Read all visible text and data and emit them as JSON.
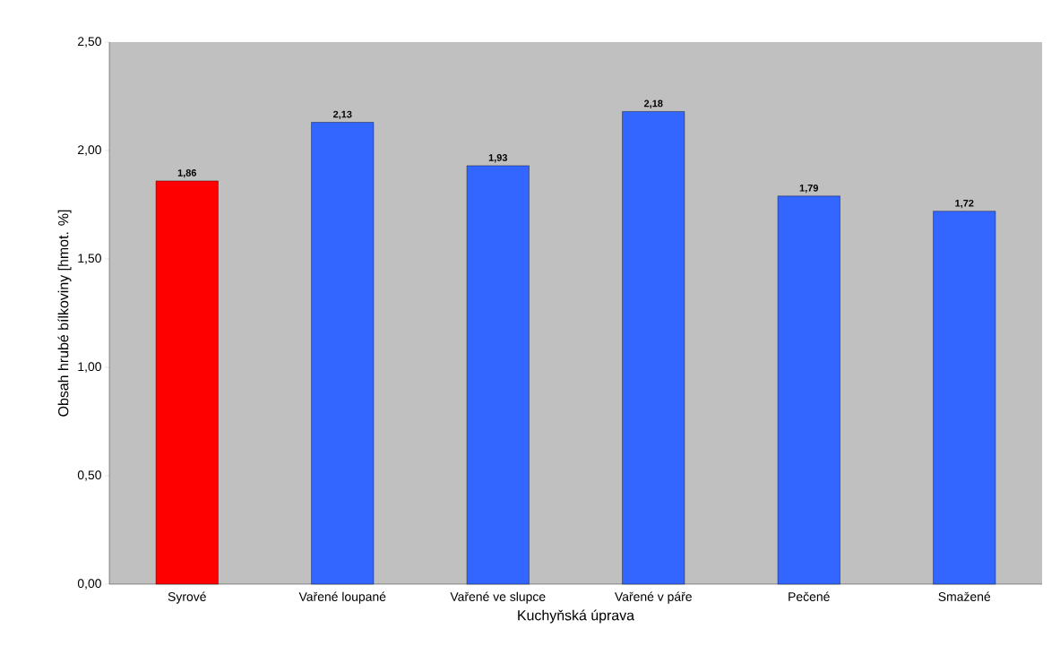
{
  "chart_data": {
    "type": "bar",
    "xlabel": "Kuchyňská úprava",
    "ylabel": "Obsah hrubé bílkoviny [hmot. %]",
    "categories": [
      "Syrové",
      "Vařené loupané",
      "Vařené ve slupce",
      "Vařené v páře",
      "Pečené",
      "Smažené"
    ],
    "values": [
      1.86,
      2.13,
      1.93,
      2.18,
      1.79,
      1.72
    ],
    "colors": [
      "#ff0000",
      "#3366ff",
      "#3366ff",
      "#3366ff",
      "#3366ff",
      "#3366ff"
    ],
    "value_labels": [
      "1,86",
      "2,13",
      "1,93",
      "2,18",
      "1,79",
      "1,72"
    ],
    "ylim": [
      0,
      2.5
    ],
    "yticks": [
      {
        "value": 0,
        "label": "0,00"
      },
      {
        "value": 0.5,
        "label": "0,50"
      },
      {
        "value": 1,
        "label": "1,00"
      },
      {
        "value": 1.5,
        "label": "1,50"
      },
      {
        "value": 2,
        "label": "2,00"
      },
      {
        "value": 2.5,
        "label": "2,50"
      }
    ],
    "grid": false
  }
}
